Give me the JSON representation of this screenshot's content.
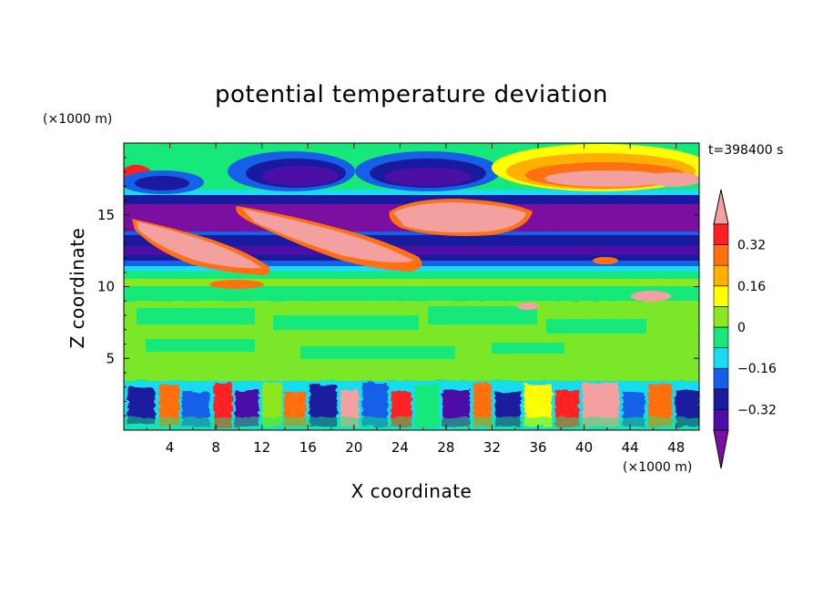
{
  "chart_data": {
    "type": "heatmap",
    "title": "potential temperature deviation",
    "time_label": "t=398400 s",
    "xlabel": "X coordinate",
    "ylabel": "Z coordinate",
    "x_unit": "(×1000 m)",
    "y_unit": "(×1000 m)",
    "xlim": [
      0,
      50
    ],
    "ylim": [
      0,
      20
    ],
    "x_ticks": [
      4,
      8,
      12,
      16,
      20,
      24,
      28,
      32,
      36,
      40,
      44,
      48
    ],
    "y_ticks": [
      5,
      10,
      15
    ],
    "colorbar": {
      "levels": [
        -0.4,
        -0.32,
        -0.24,
        -0.16,
        -0.08,
        0,
        0.08,
        0.16,
        0.24,
        0.32,
        0.4
      ],
      "labels": [
        "-0.32",
        "-0.16",
        "0",
        "0.16",
        "0.32"
      ],
      "label_values": [
        -0.32,
        -0.16,
        0,
        0.16,
        0.32
      ],
      "colors": [
        "#7a0fa0",
        "#4b0fa6",
        "#1a1a9e",
        "#1660e8",
        "#19dcf0",
        "#16e87a",
        "#8ce81e",
        "#ffff00",
        "#ffb000",
        "#ff7010",
        "#ff2020",
        "#f2a0a0"
      ],
      "extend": "both"
    },
    "fields": {
      "background_level": "0",
      "layers": [
        {
          "z": [
            0,
            3.5
          ],
          "description_level": "mixed -0.4 to 0.4"
        },
        {
          "z": [
            3.5,
            10
          ],
          "dominant_level": "0 to 0.08"
        },
        {
          "z": [
            10,
            13
          ],
          "dominant_level": "-0.16 to -0.4"
        },
        {
          "z": [
            13,
            15.5
          ],
          "dominant_level": "-0.4 with >0.4 streaks"
        },
        {
          "z": [
            15.5,
            20
          ],
          "dominant_level": "waves -0.4 to 0.4"
        }
      ]
    }
  }
}
